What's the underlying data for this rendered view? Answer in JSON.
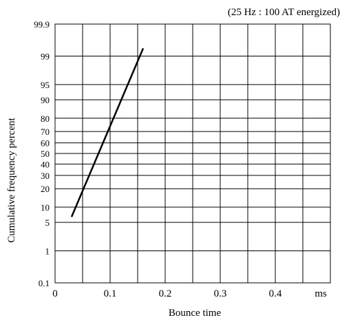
{
  "chart_data": {
    "type": "line",
    "annotation": "(25 Hz : 100 AT energized)",
    "xlabel": "Bounce time",
    "ylabel": "Cumulative frequency percent",
    "x_unit_label": "ms",
    "xlim": [
      0,
      0.5
    ],
    "x_ticks": [
      0,
      0.1,
      0.2,
      0.3,
      0.4
    ],
    "x_tick_labels": [
      "0",
      "0.1",
      "0.2",
      "0.3",
      "0.4"
    ],
    "x_minor_step": 0.05,
    "y_scale": "probability (normal)",
    "ylim": [
      0.1,
      99.9
    ],
    "y_ticks": [
      0.1,
      1,
      5,
      10,
      20,
      30,
      40,
      50,
      60,
      70,
      80,
      90,
      95,
      99,
      99.9
    ],
    "y_tick_labels": [
      "0.1",
      "1",
      "5",
      "10",
      "20",
      "30",
      "40",
      "50",
      "60",
      "70",
      "80",
      "90",
      "95",
      "99",
      "99.9"
    ],
    "grid": true,
    "series": [
      {
        "x": [
          0.03,
          0.16
        ],
        "y": [
          6.5,
          99.4
        ]
      }
    ],
    "colors": {
      "line": "#000000",
      "grid": "#000000",
      "background": "#ffffff"
    }
  }
}
